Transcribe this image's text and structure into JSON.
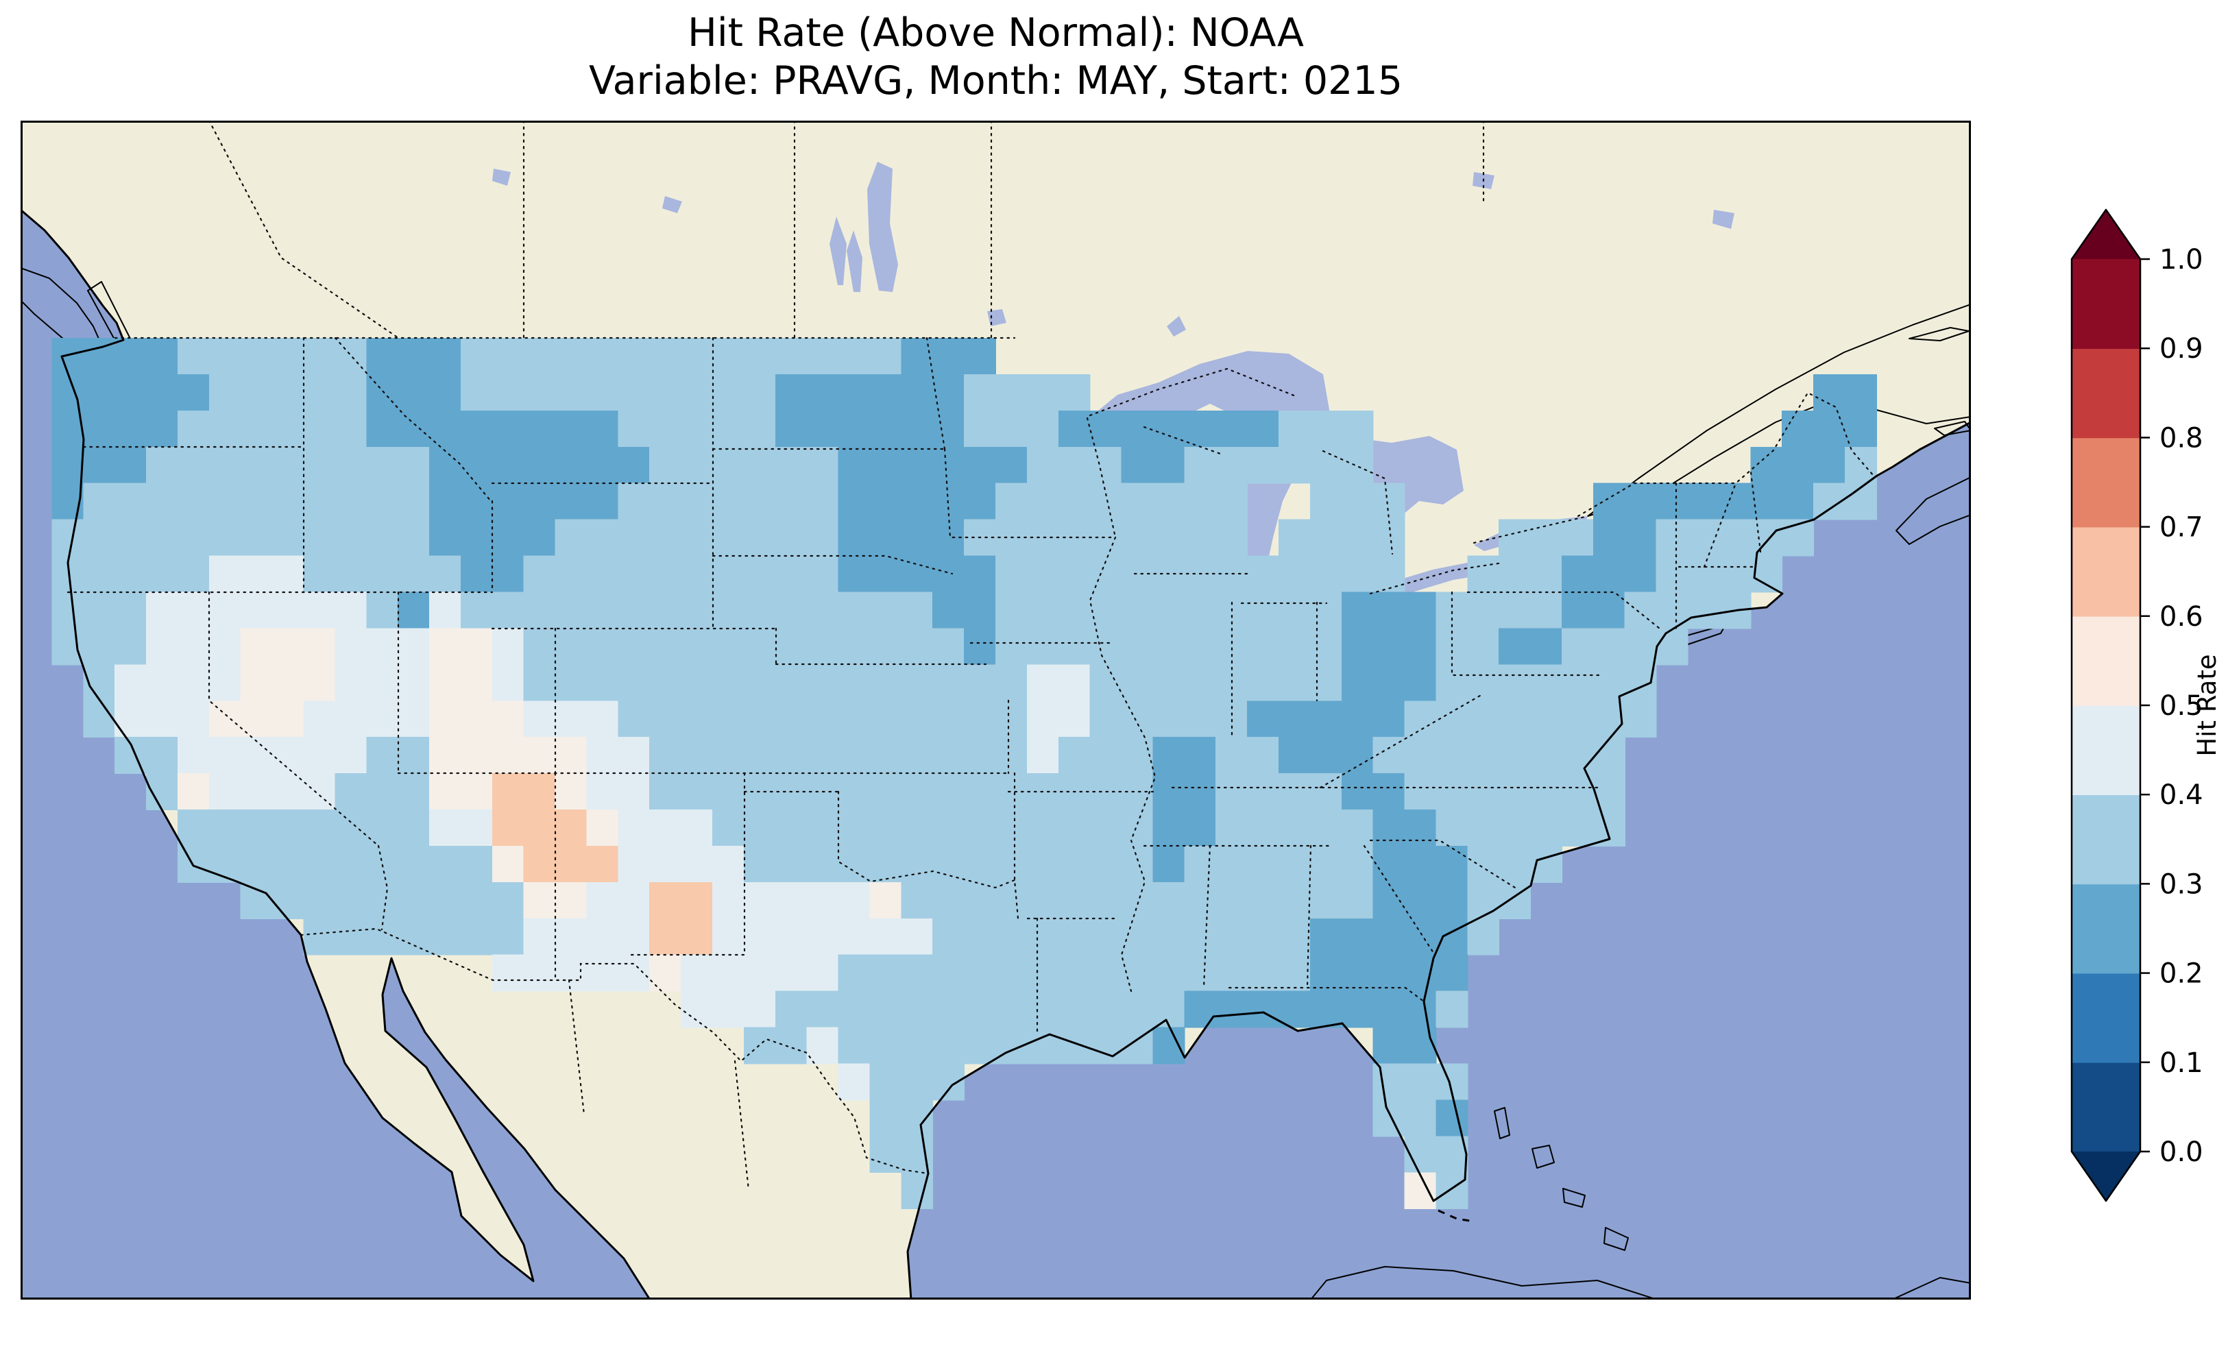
{
  "title": {
    "line1": "Hit Rate (Above Normal): NOAA",
    "line2": "Variable: PRAVG, Month: MAY, Start: 0215"
  },
  "colorbar": {
    "label": "Hit Rate",
    "ticks": [
      "0.0",
      "0.1",
      "0.2",
      "0.3",
      "0.4",
      "0.5",
      "0.6",
      "0.7",
      "0.8",
      "0.9",
      "1.0"
    ],
    "segment_colors": [
      "#134c87",
      "#2f7ab6",
      "#62a7ce",
      "#a3cde3",
      "#e2edf3",
      "#faeadf",
      "#f8c0a4",
      "#e58368",
      "#c43c3c",
      "#8d0c25"
    ],
    "under_color": "#053061",
    "over_color": "#67001f"
  },
  "map_colors": {
    "ocean": "#8da2d3",
    "land": "#f0eedb",
    "lake": "#a9b6de"
  },
  "chart_data": {
    "type": "heatmap",
    "title": "Hit Rate (Above Normal): NOAA",
    "subtitle": "Variable: PRAVG, Month: MAY, Start: 0215",
    "source": "NOAA",
    "variable": "PRAVG",
    "month": "MAY",
    "start": "0215",
    "colorbar": {
      "label": "Hit Rate",
      "vmin": 0.0,
      "vmax": 1.0,
      "bin_width": 0.1,
      "cmap": "RdBu_r",
      "extend": "both",
      "tick_values": [
        0.0,
        0.1,
        0.2,
        0.3,
        0.4,
        0.5,
        0.6,
        0.7,
        0.8,
        0.9,
        1.0
      ]
    },
    "geo_extent": {
      "lon_min": -126,
      "lon_max": -64,
      "lat_min": 22.5,
      "lat_max": 55
    },
    "grid": {
      "description": "1-degree hit-rate cells over CONUS; codes map to bin-center values",
      "lon_start": -125,
      "lat_start": 50,
      "cell_deg": 1,
      "value_codes": {
        "a": 0.25,
        "b": 0.35,
        "c": 0.45,
        "d": 0.55,
        "e": 0.65,
        ".": null
      },
      "palette": {
        "a": "#62a7ce",
        "b": "#a3cde3",
        "c": "#e2edf3",
        "d": "#f5efe8",
        "e": "#f8c9ab"
      },
      "rows": [
        "...........................................................",
        "aaaabbbbbbaaabbbbbbbbbbbbbbaaa.............................",
        "aaaaabbbbbaaabbbbbbbbbbaaaaaabbbb.......................aa.",
        "aaaabbbbbbaaaaaaaabbbbbaaaaaabbbaaaaaaabbb.............aaa.",
        "aaabbbbbbbbbaaaaaaabbbbbbaaaaaabbbaabbbbbb............aaab.",
        "abbbbbbbbbbbaaaaaabbbbbbbaaaaabbbbbbbb..bbb......aaaaaaabb.",
        "bbbbbbbbbbbbaaaabbbbbbbbbaaaabbbbbbbbb.bbbb...bbbaabbbbb...",
        "bbbbbcccbbbbbaabbbbbbbbbbaaaaabbbbbbbbbbbbb..bbbaaabbbb....",
        "bbbcccccccbacbbbbbbbbbbbbbbbaabbbbbbbbbbbaaabbbbaabbbb.....",
        "bbbcccdddcccddcbbbbbbbbbbbbbbabbbbbbbbbbbaaabbaabbbb.......",
        ".bccccdddcccddcbbbbbbbbbbbbbbbbccbbbbbbbbaaabbbbbbb........",
        ".bcccdddccccdddcccbbbbbbbbbbbbbccbbbbbaaaaabbbbbbbb........",
        "..bbccccccbbdddddccbbbbbbbbbbbbcbbbaabbaaabbbbbbbb.........",
        "...bdccccbbbddeedccbbbbbbbbbbbbbbbbaabbbbaabbbbbbb.........",
        "....bbbbbbbbcceeedcccbbbbbbbbbbbbbbaabbbbbaabbbbbb.........",
        "....bbbbbbbbbbdeeeccccbbbbbbbbbbbbbabbbbbbaaabbb...........",
        "......bbbbbbbbbddcceecccccdbbbbbbbbbbbbbbbaaabb............",
        "........bbbbbbbcccceecccccccbbbbbbbbbbbbaaaaab.............",
        "..............cccccdcccccbbbbbbbbbbbbbbbaaaaa..............",
        "....................cccbbbbbbbbbbbbbaaaaaaaab..............",
        "......................bbcbbbbbbbbbba......aa...............",
        ".........................cbbb.............bbb..............",
        "..........................bb..............bba..............",
        "..........................bb...............bb..............",
        "...........................b...............db..............",
        "..........................................................."
      ]
    }
  }
}
